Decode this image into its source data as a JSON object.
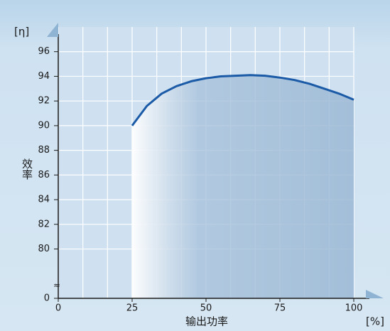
{
  "chart_data": {
    "type": "area-line",
    "y_unit": "[η]",
    "x_unit": "[%]",
    "ylabel": "效率",
    "xlabel": "输出功率",
    "x": [
      25,
      30,
      35,
      40,
      45,
      50,
      55,
      60,
      65,
      70,
      75,
      80,
      85,
      90,
      95,
      100
    ],
    "values": [
      90.0,
      91.6,
      92.6,
      93.2,
      93.6,
      93.85,
      94.0,
      94.05,
      94.1,
      94.05,
      93.9,
      93.7,
      93.4,
      93.0,
      92.6,
      92.1
    ],
    "color": "#1a5aa6",
    "xlim": [
      0,
      100
    ],
    "xticks": [
      0,
      25,
      50,
      75,
      100
    ],
    "x_minor_grid": 3,
    "ylim": [
      76,
      98
    ],
    "yticks": [
      0,
      80,
      82,
      84,
      86,
      88,
      90,
      92,
      94,
      96
    ],
    "axis_break": true,
    "grid": true
  }
}
